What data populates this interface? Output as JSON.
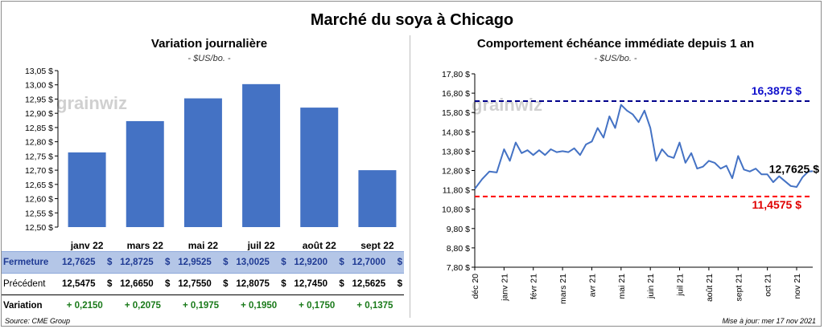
{
  "title": "Marché du soya à Chicago",
  "watermark": "grainwiz",
  "left_chart": {
    "title": "Variation journalière",
    "unit": "- $US/bo. -"
  },
  "right_chart": {
    "title": "Comportement échéance immédiate depuis 1 an",
    "unit": "- $US/bo. -",
    "high_label": "16,3875 $",
    "low_label": "11,4575 $",
    "last_label": "12,7625 $"
  },
  "table": {
    "row_labels": [
      "Fermeture",
      "Précédent",
      "Variation"
    ],
    "close": [
      "12,7625",
      "12,8725",
      "12,9525",
      "13,0025",
      "12,9200",
      "12,7000"
    ],
    "previous": [
      "12,5475",
      "12,6650",
      "12,7550",
      "12,8075",
      "12,7450",
      "12,5625"
    ],
    "change": [
      "+ 0,2150",
      "+ 0,2075",
      "+ 0,1975",
      "+ 0,1950",
      "+ 0,1750",
      "+ 0,1375"
    ],
    "currency": "$"
  },
  "footer": {
    "source": "Source: CME Group",
    "updated": "Mise à jour: mer 17 nov 2021"
  },
  "colors": {
    "bar": "#4472c4",
    "line": "#4472c4",
    "high": "#00008b",
    "low": "#ff0000",
    "high_text": "#1010cc",
    "low_text": "#e00000"
  },
  "chart_data": [
    {
      "type": "bar",
      "title": "Variation journalière",
      "categories": [
        "janv 22",
        "mars 22",
        "mai 22",
        "juil 22",
        "août 22",
        "sept 22"
      ],
      "values": [
        12.7625,
        12.8725,
        12.9525,
        13.0025,
        12.92,
        12.7
      ],
      "ylim": [
        12.5,
        13.05
      ],
      "yticks": [
        "12,50 $",
        "12,55 $",
        "12,60 $",
        "12,65 $",
        "12,70 $",
        "12,75 $",
        "12,80 $",
        "12,85 $",
        "12,90 $",
        "12,95 $",
        "13,00 $",
        "13,05 $"
      ],
      "grid": false
    },
    {
      "type": "line",
      "title": "Comportement échéance immédiate depuis 1 an",
      "xticks": [
        "déc 20",
        "janv 21",
        "févr 21",
        "mars 21",
        "avr 21",
        "mai 21",
        "juin 21",
        "juil 21",
        "août 21",
        "sept 21",
        "oct 21",
        "nov 21"
      ],
      "ylim": [
        7.8,
        17.8
      ],
      "yticks": [
        "7,80 $",
        "8,80 $",
        "9,80 $",
        "10,80 $",
        "11,80 $",
        "12,80 $",
        "13,80 $",
        "14,80 $",
        "15,80 $",
        "16,80 $",
        "17,80 $"
      ],
      "x": [
        0,
        0.25,
        0.5,
        0.75,
        1,
        1.2,
        1.4,
        1.6,
        1.8,
        2,
        2.2,
        2.4,
        2.6,
        2.8,
        3,
        3.2,
        3.4,
        3.6,
        3.8,
        4,
        4.2,
        4.4,
        4.6,
        4.8,
        5,
        5.2,
        5.4,
        5.6,
        5.8,
        6,
        6.2,
        6.4,
        6.6,
        6.8,
        7,
        7.2,
        7.4,
        7.6,
        7.8,
        8,
        8.2,
        8.4,
        8.6,
        8.8,
        9,
        9.2,
        9.4,
        9.6,
        9.8,
        10,
        10.2,
        10.4,
        10.6,
        10.8,
        11,
        11.2,
        11.4,
        11.55
      ],
      "values": [
        11.85,
        12.35,
        12.75,
        12.7,
        13.9,
        13.3,
        14.25,
        13.7,
        13.85,
        13.6,
        13.85,
        13.6,
        13.9,
        13.75,
        13.8,
        13.75,
        13.95,
        13.6,
        14.15,
        14.3,
        15.0,
        14.5,
        15.6,
        15.0,
        16.2,
        15.9,
        15.7,
        15.3,
        15.9,
        15.0,
        13.3,
        13.9,
        13.55,
        13.45,
        14.25,
        13.2,
        13.7,
        12.9,
        13.0,
        13.3,
        13.2,
        12.9,
        13.05,
        12.4,
        13.55,
        12.85,
        12.75,
        12.9,
        12.6,
        12.6,
        12.2,
        12.5,
        12.25,
        12.0,
        11.95,
        12.45,
        12.75,
        12.7625
      ],
      "high": 16.3875,
      "low": 11.4575,
      "last": 12.7625,
      "grid": false
    }
  ]
}
